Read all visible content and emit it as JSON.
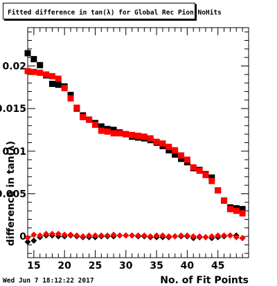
{
  "title": "Fitted difference in tan(λ) for Global Rec Pion NoHits",
  "footer": {
    "timestamp": "Wed Jun  7 18:12:22 2017"
  },
  "chart_data": {
    "type": "scatter",
    "title": "Fitted difference in tan(λ) for Global Rec Pion NoHits",
    "xlabel": "No. of Fit Points",
    "ylabel": "difference in tan(λ)",
    "xlim": [
      14,
      50
    ],
    "ylim": [
      -0.0025,
      0.0245
    ],
    "x_ticks": [
      15,
      20,
      25,
      30,
      35,
      40,
      45
    ],
    "x_tick_labels": [
      "15",
      "20",
      "25",
      "30",
      "35",
      "40",
      "45"
    ],
    "y_ticks": [
      0,
      0.005,
      0.01,
      0.015,
      0.02
    ],
    "y_tick_labels": [
      "0",
      "0.005",
      "0.01",
      "0.015",
      "0.02"
    ],
    "grid": false,
    "x": [
      14,
      15,
      16,
      17,
      18,
      19,
      20,
      21,
      22,
      23,
      24,
      25,
      26,
      27,
      28,
      29,
      30,
      31,
      32,
      33,
      34,
      35,
      36,
      37,
      38,
      39,
      40,
      41,
      42,
      43,
      44,
      45,
      46,
      47,
      48,
      49
    ],
    "series": [
      {
        "marker": "square",
        "color": "#000000",
        "values": [
          0.0215,
          0.0208,
          0.0201,
          0.0189,
          0.0179,
          0.0178,
          0.0176,
          0.0166,
          0.015,
          0.0142,
          0.0137,
          0.0133,
          0.0129,
          0.0126,
          0.0125,
          0.0122,
          0.012,
          0.0117,
          0.0116,
          0.0115,
          0.0113,
          0.011,
          0.0106,
          0.0101,
          0.0096,
          0.0091,
          0.0087,
          0.008,
          0.0078,
          0.0073,
          0.0069,
          0.0054,
          0.0042,
          0.0034,
          0.0033,
          0.0032
        ]
      },
      {
        "marker": "square",
        "color": "#ff0000",
        "values": [
          0.0194,
          0.0193,
          0.0192,
          0.019,
          0.0188,
          0.0185,
          0.0174,
          0.0162,
          0.0151,
          0.014,
          0.0137,
          0.0131,
          0.0124,
          0.0123,
          0.0121,
          0.0121,
          0.012,
          0.0119,
          0.0118,
          0.0117,
          0.0115,
          0.0111,
          0.0109,
          0.0105,
          0.0101,
          0.0095,
          0.009,
          0.0081,
          0.0077,
          0.0072,
          0.0065,
          0.0054,
          0.0042,
          0.0032,
          0.003,
          0.0027
        ]
      },
      {
        "marker": "diamond",
        "color": "#000000",
        "values": [
          -0.00065,
          -0.0005,
          -0.0001,
          0.0001,
          0.0001,
          0.0,
          0.0,
          0.0001,
          0.0,
          -0.0001,
          -0.0001,
          -0.0001,
          0.0,
          0.0,
          0.0,
          0.0001,
          0.0001,
          0.0001,
          0.0,
          0.0,
          -0.0001,
          -0.0001,
          -0.0001,
          -0.0001,
          0.0,
          0.0,
          0.0,
          -0.0002,
          -0.0001,
          -0.0001,
          -0.0002,
          -0.0001,
          0.0,
          0.0001,
          0.0001,
          -0.0002
        ]
      },
      {
        "marker": "diamond",
        "color": "#ff0000",
        "values": [
          -0.00015,
          0.0002,
          0.0001,
          0.0003,
          0.0003,
          0.0003,
          0.0002,
          0.0002,
          0.0001,
          0.0,
          0.0001,
          0.0001,
          0.0001,
          0.0001,
          0.0002,
          0.0001,
          0.0001,
          0.0001,
          0.0001,
          0.0001,
          0.0,
          0.0001,
          0.0001,
          0.0,
          0.0,
          0.0001,
          0.0001,
          0.0,
          0.0,
          -0.0001,
          0.0,
          0.0001,
          0.0001,
          0.0001,
          -0.0001,
          -0.0002
        ]
      }
    ]
  }
}
